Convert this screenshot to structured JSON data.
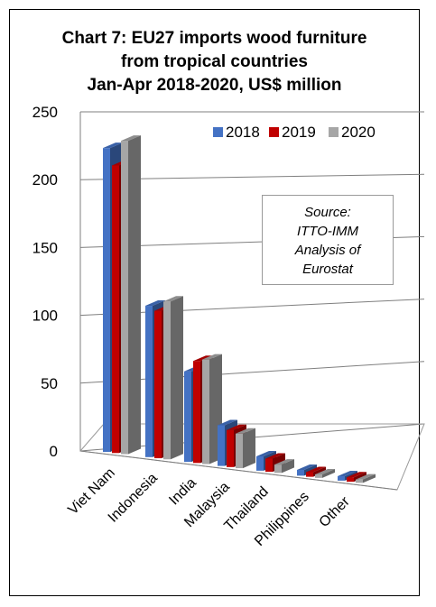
{
  "chart_data": {
    "type": "bar",
    "title_lines": [
      "Chart 7: EU27 imports wood furniture",
      "from tropical countries",
      "Jan-Apr 2018-2020, US$ million"
    ],
    "categories": [
      "Viet Nam",
      "Indonesia",
      "India",
      "Malaysia",
      "Thailand",
      "Philippines",
      "Other"
    ],
    "series": [
      {
        "name": "2018",
        "color": "#4472c4",
        "values": [
          224,
          115,
          71,
          33,
          12,
          5,
          4
        ]
      },
      {
        "name": "2019",
        "color": "#c00000",
        "values": [
          212,
          112,
          80,
          30,
          11,
          4,
          4
        ]
      },
      {
        "name": "2020",
        "color": "#a6a6a6",
        "values": [
          231,
          120,
          82,
          28,
          7,
          3,
          3
        ]
      }
    ],
    "yticks": [
      0,
      50,
      100,
      150,
      200,
      250
    ],
    "ylim": [
      0,
      250
    ],
    "grid": true,
    "legend_position": "top-right",
    "annotation_lines": [
      "Source:",
      "ITTO-IMM",
      "Analysis of",
      "Eurostat"
    ]
  }
}
